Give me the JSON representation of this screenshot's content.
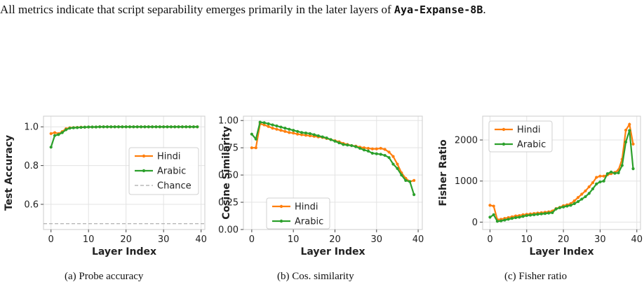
{
  "intro": {
    "text_before": "All metrics indicate that script separability emerges primarily in the later layers of ",
    "model": "Aya-Expanse-8B",
    "text_after": "."
  },
  "colors": {
    "hindi": "#ff7f0e",
    "arabic": "#2ca02c",
    "chance": "#aaaaaa",
    "grid": "#e3e3e3",
    "frame": "#cccccc"
  },
  "captions": [
    "(a) Probe accuracy",
    "(b) Cos. similarity",
    "(c) Fisher ratio"
  ],
  "chart_data": [
    {
      "type": "line",
      "xlabel": "Layer Index",
      "ylabel": "Test Accuracy",
      "xlim": [
        -2,
        41
      ],
      "ylim": [
        0.47,
        1.055
      ],
      "xticks": [
        0,
        10,
        20,
        30,
        40
      ],
      "yticks": [
        0.6,
        0.8,
        1.0
      ],
      "ytick_labels": [
        "0.6",
        "0.8",
        "1.0"
      ],
      "legend_position": "center-right",
      "grid": true,
      "series": [
        {
          "name": "Hindi",
          "x": [
            0,
            1,
            2,
            3,
            4,
            5,
            6,
            7,
            8,
            9,
            10,
            11,
            12,
            13,
            14,
            15,
            16,
            17,
            18,
            19,
            20,
            21,
            22,
            23,
            24,
            25,
            26,
            27,
            28,
            29,
            30,
            31,
            32,
            33,
            34,
            35,
            36,
            37,
            38,
            39
          ],
          "values": [
            0.965,
            0.97,
            0.965,
            0.975,
            0.99,
            0.995,
            0.996,
            0.997,
            0.998,
            0.998,
            0.999,
            0.999,
            0.999,
            1,
            1,
            1,
            1,
            1,
            1,
            1,
            1,
            1,
            1,
            1,
            1,
            1,
            1,
            1,
            1,
            1,
            1,
            1,
            1,
            1,
            1,
            1,
            1,
            1,
            1,
            1
          ]
        },
        {
          "name": "Arabic",
          "x": [
            0,
            1,
            2,
            3,
            4,
            5,
            6,
            7,
            8,
            9,
            10,
            11,
            12,
            13,
            14,
            15,
            16,
            17,
            18,
            19,
            20,
            21,
            22,
            23,
            24,
            25,
            26,
            27,
            28,
            29,
            30,
            31,
            32,
            33,
            34,
            35,
            36,
            37,
            38,
            39
          ],
          "values": [
            0.895,
            0.955,
            0.96,
            0.97,
            0.985,
            0.993,
            0.995,
            0.996,
            0.997,
            0.998,
            0.999,
            0.999,
            0.999,
            1,
            1,
            1,
            1,
            1,
            1,
            1,
            1,
            1,
            1,
            1,
            1,
            1,
            1,
            1,
            1,
            1,
            1,
            1,
            1,
            1,
            1,
            1,
            1,
            1,
            1,
            1
          ]
        },
        {
          "name": "Chance",
          "style": "dashed",
          "x": [
            -2,
            41
          ],
          "values": [
            0.5,
            0.5
          ]
        }
      ]
    },
    {
      "type": "line",
      "xlabel": "Layer Index",
      "ylabel": "Cosine Similarity",
      "xlim": [
        -2,
        41
      ],
      "ylim": [
        0,
        1.04
      ],
      "xticks": [
        0,
        10,
        20,
        30,
        40
      ],
      "yticks": [
        0,
        0.25,
        0.5,
        0.75,
        1.0
      ],
      "ytick_labels": [
        "0.00",
        "0.25",
        "0.50",
        "0.75",
        "1.00"
      ],
      "legend_position": "lower-left",
      "grid": true,
      "series": [
        {
          "name": "Hindi",
          "x": [
            0,
            1,
            2,
            3,
            4,
            5,
            6,
            7,
            8,
            9,
            10,
            11,
            12,
            13,
            14,
            15,
            16,
            17,
            18,
            19,
            20,
            21,
            22,
            23,
            24,
            25,
            26,
            27,
            28,
            29,
            30,
            31,
            32,
            33,
            34,
            35,
            36,
            37,
            38,
            39
          ],
          "values": [
            0.75,
            0.75,
            0.97,
            0.96,
            0.945,
            0.93,
            0.92,
            0.91,
            0.9,
            0.89,
            0.885,
            0.875,
            0.87,
            0.865,
            0.86,
            0.855,
            0.85,
            0.845,
            0.835,
            0.825,
            0.815,
            0.805,
            0.79,
            0.78,
            0.77,
            0.765,
            0.755,
            0.75,
            0.745,
            0.74,
            0.74,
            0.745,
            0.735,
            0.71,
            0.67,
            0.6,
            0.52,
            0.47,
            0.44,
            0.45
          ]
        },
        {
          "name": "Arabic",
          "x": [
            0,
            1,
            2,
            3,
            4,
            5,
            6,
            7,
            8,
            9,
            10,
            11,
            12,
            13,
            14,
            15,
            16,
            17,
            18,
            19,
            20,
            21,
            22,
            23,
            24,
            25,
            26,
            27,
            28,
            29,
            30,
            31,
            32,
            33,
            34,
            35,
            36,
            37,
            38,
            39
          ],
          "values": [
            0.875,
            0.83,
            0.985,
            0.98,
            0.97,
            0.96,
            0.95,
            0.94,
            0.93,
            0.92,
            0.91,
            0.9,
            0.89,
            0.885,
            0.88,
            0.87,
            0.86,
            0.85,
            0.84,
            0.825,
            0.81,
            0.795,
            0.78,
            0.775,
            0.77,
            0.76,
            0.745,
            0.73,
            0.72,
            0.7,
            0.695,
            0.69,
            0.68,
            0.66,
            0.6,
            0.56,
            0.5,
            0.45,
            0.44,
            0.32
          ]
        }
      ]
    },
    {
      "type": "line",
      "xlabel": "Layer Index",
      "ylabel": "Fisher Ratio",
      "xlim": [
        -2,
        41
      ],
      "ylim": [
        -180,
        2580
      ],
      "xticks": [
        0,
        10,
        20,
        30,
        40
      ],
      "yticks": [
        0,
        1000,
        2000
      ],
      "ytick_labels": [
        "0",
        "1000",
        "2000"
      ],
      "legend_position": "upper-left",
      "grid": true,
      "series": [
        {
          "name": "Hindi",
          "x": [
            0,
            1,
            2,
            3,
            4,
            5,
            6,
            7,
            8,
            9,
            10,
            11,
            12,
            13,
            14,
            15,
            16,
            17,
            18,
            19,
            20,
            21,
            22,
            23,
            24,
            25,
            26,
            27,
            28,
            29,
            30,
            31,
            32,
            33,
            34,
            35,
            36,
            37,
            38,
            39
          ],
          "values": [
            410,
            390,
            60,
            70,
            90,
            110,
            130,
            150,
            160,
            180,
            190,
            200,
            210,
            220,
            230,
            240,
            250,
            270,
            330,
            360,
            400,
            420,
            450,
            520,
            600,
            680,
            760,
            860,
            960,
            1090,
            1120,
            1120,
            1150,
            1180,
            1210,
            1270,
            1530,
            2240,
            2380,
            1900
          ]
        },
        {
          "name": "Arabic",
          "x": [
            0,
            1,
            2,
            3,
            4,
            5,
            6,
            7,
            8,
            9,
            10,
            11,
            12,
            13,
            14,
            15,
            16,
            17,
            18,
            19,
            20,
            21,
            22,
            23,
            24,
            25,
            26,
            27,
            28,
            29,
            30,
            31,
            32,
            33,
            34,
            35,
            36,
            37,
            38,
            39
          ],
          "values": [
            120,
            180,
            20,
            30,
            50,
            70,
            90,
            110,
            120,
            140,
            160,
            170,
            180,
            190,
            200,
            210,
            220,
            230,
            320,
            350,
            370,
            390,
            410,
            450,
            500,
            560,
            620,
            700,
            810,
            930,
            980,
            1000,
            1180,
            1220,
            1190,
            1200,
            1380,
            1950,
            2230,
            1300
          ]
        }
      ]
    }
  ]
}
